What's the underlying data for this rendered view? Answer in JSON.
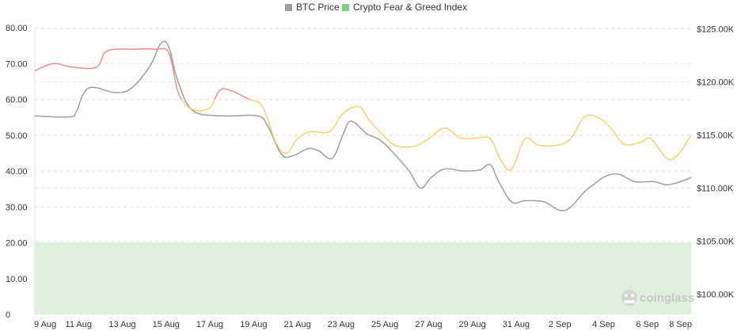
{
  "chart_data": {
    "type": "line",
    "legend": {
      "placement": "top-center"
    },
    "series": [
      {
        "name": "BTC Price",
        "axis": "right",
        "color": "#9e9e9e",
        "values": [
          [
            0,
            116800
          ],
          [
            1.3,
            116700
          ],
          [
            1.55,
            117200
          ],
          [
            2,
            119400
          ],
          [
            3,
            119000
          ],
          [
            3.6,
            119400
          ],
          [
            4.3,
            121500
          ],
          [
            4.7,
            123600
          ],
          [
            5.0,
            123300
          ],
          [
            5.35,
            120000
          ],
          [
            5.9,
            117300
          ],
          [
            7.0,
            116800
          ],
          [
            8.3,
            116800
          ],
          [
            8.7,
            115800
          ],
          [
            9.2,
            113200
          ],
          [
            9.6,
            113000
          ],
          [
            10.2,
            113700
          ],
          [
            10.6,
            113500
          ],
          [
            11.1,
            112800
          ],
          [
            11.5,
            115000
          ],
          [
            11.8,
            116300
          ],
          [
            12.4,
            115100
          ],
          [
            12.9,
            114500
          ],
          [
            13.5,
            113000
          ],
          [
            14.0,
            111500
          ],
          [
            14.4,
            110000
          ],
          [
            14.8,
            111000
          ],
          [
            15.3,
            111800
          ],
          [
            16.0,
            111600
          ],
          [
            16.6,
            111700
          ],
          [
            17.0,
            112200
          ],
          [
            17.3,
            110700
          ],
          [
            17.8,
            108700
          ],
          [
            18.3,
            108800
          ],
          [
            19.0,
            108700
          ],
          [
            19.6,
            107900
          ],
          [
            20.0,
            108200
          ],
          [
            20.5,
            109600
          ],
          [
            20.9,
            110400
          ],
          [
            21.3,
            111100
          ],
          [
            21.8,
            111300
          ],
          [
            22.4,
            110600
          ],
          [
            23.1,
            110600
          ],
          [
            23.6,
            110300
          ],
          [
            24.1,
            110600
          ],
          [
            24.5,
            111000
          ]
        ]
      },
      {
        "name": "Crypto Fear & Greed Index",
        "axis": "left",
        "color": "#f6d36b",
        "color_greed": "#ee8b8b",
        "extreme_fear_band": [
          0,
          20
        ],
        "band_color": "#dff0dc",
        "values": [
          [
            0,
            68
          ],
          [
            0.7,
            70
          ],
          [
            1.4,
            69
          ],
          [
            2.3,
            69
          ],
          [
            2.7,
            73.5
          ],
          [
            3.7,
            74
          ],
          [
            4.5,
            74
          ],
          [
            5.0,
            73
          ],
          [
            5.35,
            62
          ],
          [
            5.8,
            57.5
          ],
          [
            6.5,
            57.5
          ],
          [
            6.9,
            62.5
          ],
          [
            7.3,
            62.5
          ],
          [
            8.0,
            60
          ],
          [
            8.5,
            58
          ],
          [
            9.0,
            48
          ],
          [
            9.4,
            45
          ],
          [
            9.8,
            49
          ],
          [
            10.3,
            51
          ],
          [
            11.0,
            51
          ],
          [
            11.5,
            56
          ],
          [
            12.1,
            58
          ],
          [
            12.5,
            54
          ],
          [
            13.0,
            50
          ],
          [
            13.5,
            47
          ],
          [
            14.2,
            47
          ],
          [
            14.7,
            49
          ],
          [
            15.3,
            52
          ],
          [
            15.9,
            49.2
          ],
          [
            16.5,
            49.2
          ],
          [
            17.0,
            49
          ],
          [
            17.4,
            43
          ],
          [
            17.8,
            40.5
          ],
          [
            18.3,
            49
          ],
          [
            18.8,
            47.2
          ],
          [
            19.5,
            47.2
          ],
          [
            20.0,
            49
          ],
          [
            20.5,
            55
          ],
          [
            21.0,
            55
          ],
          [
            21.5,
            52
          ],
          [
            22.0,
            47.5
          ],
          [
            22.6,
            48
          ],
          [
            23.0,
            49
          ],
          [
            23.6,
            43.5
          ],
          [
            24.0,
            44.5
          ],
          [
            24.5,
            50
          ]
        ]
      }
    ],
    "x_ticks": [
      "9 Aug",
      "11 Aug",
      "13 Aug",
      "15 Aug",
      "17 Aug",
      "19 Aug",
      "21 Aug",
      "23 Aug",
      "25 Aug",
      "27 Aug",
      "29 Aug",
      "31 Aug",
      "2 Sep",
      "4 Sep",
      "6 Sep",
      "8 Sep"
    ],
    "y_left_ticks": [
      "0",
      "10.00",
      "20.00",
      "30.00",
      "40.00",
      "50.00",
      "60.00",
      "70.00",
      "80.00"
    ],
    "y_left_range": [
      0,
      80
    ],
    "y_right_ticks": [
      "$100.00K",
      "$105.00K",
      "$110.00K",
      "$115.00K",
      "$120.00K",
      "$125.00K"
    ],
    "y_right_range": [
      98100,
      125100
    ],
    "grid": true
  },
  "legend": {
    "btc_label": "BTC Price",
    "fgi_label": "Crypto Fear & Greed Index"
  },
  "watermark": {
    "text": "coinglass"
  },
  "colors": {
    "btc_price": "#9e9e9e",
    "fgi": "#f6d36b",
    "fgi_greed": "#ee8b8b",
    "fear_band": "#dff0dc",
    "legend_fgi_swatch": "#7fd08a",
    "grid": "#e6e6e6"
  }
}
